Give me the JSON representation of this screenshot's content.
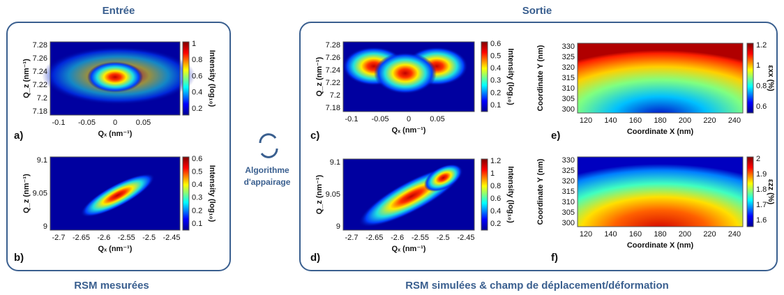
{
  "headers": {
    "left": "Entrée",
    "right": "Sortie"
  },
  "footers": {
    "left": "RSM mesurées",
    "right": "RSM simulées & champ de déplacement/déformation"
  },
  "middle": [
    "Algorithme",
    "d'appairage"
  ],
  "panels": [
    {
      "letter": "a)",
      "yticks": [
        "7.28",
        "7.26",
        "7.24",
        "7.22",
        "7.2",
        "7.18"
      ],
      "xticks": [
        "-0.1",
        "-0.05",
        "0",
        "0.05"
      ],
      "xlabel": "Qₓ (nm⁻¹)",
      "ylabel": "Q_z (nm⁻¹)",
      "cbar_ticks": [
        "1",
        "0.8",
        "0.6",
        "0.4",
        "0.2"
      ],
      "cbar_label": "Intensity (log₁₀)"
    },
    {
      "letter": "b)",
      "yticks": [
        "9.1",
        "9.05",
        "9"
      ],
      "xticks": [
        "-2.7",
        "-2.65",
        "-2.6",
        "-2.55",
        "-2.5",
        "-2.45"
      ],
      "xlabel": "Qₓ (nm⁻¹)",
      "ylabel": "Q_z (nm⁻¹)",
      "cbar_ticks": [
        "0.6",
        "0.5",
        "0.4",
        "0.3",
        "0.2",
        "0.1"
      ],
      "cbar_label": "Intensity (log₁₀)"
    },
    {
      "letter": "c)",
      "yticks": [
        "7.28",
        "7.26",
        "7.24",
        "7.22",
        "7.2",
        "7.18"
      ],
      "xticks": [
        "-0.1",
        "-0.05",
        "0",
        "0.05"
      ],
      "xlabel": "Qₓ (nm⁻¹)",
      "ylabel": "Q_z (nm⁻¹)",
      "cbar_ticks": [
        "0.6",
        "0.5",
        "0.4",
        "0.3",
        "0.2",
        "0.1"
      ],
      "cbar_label": "Intensity (log₁₀)"
    },
    {
      "letter": "d)",
      "yticks": [
        "9.1",
        "9.05",
        "9"
      ],
      "xticks": [
        "-2.7",
        "-2.65",
        "-2.6",
        "-2.55",
        "-2.5",
        "-2.45"
      ],
      "xlabel": "Qₓ (nm⁻¹)",
      "ylabel": "Q_z (nm⁻¹)",
      "cbar_ticks": [
        "1.2",
        "1",
        "0.8",
        "0.6",
        "0.4",
        "0.2"
      ],
      "cbar_label": "Intensity (log₁₀)"
    },
    {
      "letter": "e)",
      "yticks": [
        "330",
        "325",
        "320",
        "315",
        "310",
        "305",
        "300"
      ],
      "xticks": [
        "120",
        "140",
        "160",
        "180",
        "200",
        "220",
        "240"
      ],
      "xlabel": "Coordinate X (nm)",
      "ylabel": "Coordinate Y (nm)",
      "cbar_ticks": [
        "1.2",
        "1",
        "0.8",
        "0.6"
      ],
      "cbar_label": "εxx (%)"
    },
    {
      "letter": "f)",
      "yticks": [
        "330",
        "325",
        "320",
        "315",
        "310",
        "305",
        "300"
      ],
      "xticks": [
        "120",
        "140",
        "160",
        "180",
        "200",
        "220",
        "240"
      ],
      "xlabel": "Coordinate X (nm)",
      "ylabel": "Coordinate Y (nm)",
      "cbar_ticks": [
        "2",
        "1.9",
        "1.8",
        "1.7",
        "1.6"
      ],
      "cbar_label": "εzz (%)"
    }
  ]
}
